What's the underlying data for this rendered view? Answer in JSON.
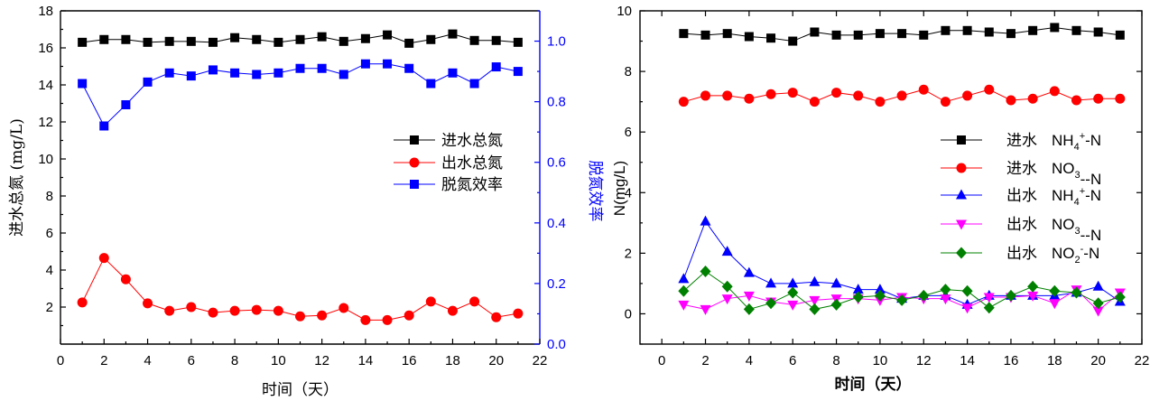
{
  "chart_data": [
    {
      "type": "line",
      "title": "",
      "xlabel": "时间（天）",
      "ylabel": "进水总氮 (mg/L)",
      "y2label": "脱氮效率",
      "xlim": [
        0,
        22
      ],
      "ylim": [
        0,
        18
      ],
      "y2lim": [
        0,
        1.1
      ],
      "x_ticks": [
        "0",
        "2",
        "4",
        "6",
        "8",
        "10",
        "12",
        "14",
        "16",
        "18",
        "20",
        "22"
      ],
      "y_ticks": [
        "2",
        "4",
        "6",
        "8",
        "10",
        "12",
        "14",
        "16",
        "18"
      ],
      "y2_ticks": [
        "0.0",
        "0.2",
        "0.4",
        "0.6",
        "0.8",
        "1.0"
      ],
      "legend_position": "center-right",
      "x": [
        1,
        2,
        3,
        4,
        5,
        6,
        7,
        8,
        9,
        10,
        11,
        12,
        13,
        14,
        15,
        16,
        17,
        18,
        19,
        20,
        21
      ],
      "series": [
        {
          "name": "进水总氮",
          "axis": "left",
          "color": "#000000",
          "marker": "square",
          "values": [
            16.3,
            16.45,
            16.45,
            16.3,
            16.35,
            16.35,
            16.3,
            16.55,
            16.45,
            16.3,
            16.45,
            16.6,
            16.35,
            16.5,
            16.7,
            16.25,
            16.45,
            16.75,
            16.4,
            16.4,
            16.3
          ]
        },
        {
          "name": "出水总氮",
          "axis": "left",
          "color": "#ff0000",
          "marker": "circle",
          "values": [
            2.25,
            4.65,
            3.5,
            2.2,
            1.8,
            2.0,
            1.7,
            1.8,
            1.85,
            1.8,
            1.5,
            1.55,
            1.95,
            1.3,
            1.3,
            1.55,
            2.3,
            1.8,
            2.3,
            1.45,
            1.65
          ]
        },
        {
          "name": "脱氮效率",
          "axis": "right",
          "color": "#0000ff",
          "marker": "square",
          "values": [
            0.86,
            0.72,
            0.79,
            0.865,
            0.895,
            0.885,
            0.905,
            0.895,
            0.89,
            0.895,
            0.91,
            0.91,
            0.89,
            0.925,
            0.925,
            0.91,
            0.86,
            0.895,
            0.86,
            0.915,
            0.9
          ]
        }
      ]
    },
    {
      "type": "line",
      "title": "",
      "xlabel": "时间（天）",
      "ylabel": "N(mg/L)",
      "xlim": [
        -1,
        22
      ],
      "ylim": [
        -1,
        10
      ],
      "x_ticks": [
        "0",
        "2",
        "4",
        "6",
        "8",
        "10",
        "12",
        "14",
        "16",
        "18",
        "20",
        "22"
      ],
      "y_ticks": [
        "0",
        "2",
        "4",
        "6",
        "8",
        "10"
      ],
      "legend_position": "center-right",
      "x": [
        1,
        2,
        3,
        4,
        5,
        6,
        7,
        8,
        9,
        10,
        11,
        12,
        13,
        14,
        15,
        16,
        17,
        18,
        19,
        20,
        21
      ],
      "series": [
        {
          "name": "进水 NH4+-N",
          "color": "#000000",
          "marker": "square",
          "values": [
            9.25,
            9.2,
            9.25,
            9.15,
            9.1,
            9.0,
            9.3,
            9.2,
            9.2,
            9.25,
            9.25,
            9.2,
            9.35,
            9.35,
            9.3,
            9.25,
            9.35,
            9.45,
            9.35,
            9.3,
            9.2
          ]
        },
        {
          "name": "进水 NO3--N",
          "color": "#ff0000",
          "marker": "circle",
          "values": [
            7.0,
            7.2,
            7.2,
            7.1,
            7.25,
            7.3,
            7.0,
            7.3,
            7.2,
            7.0,
            7.2,
            7.4,
            7.0,
            7.2,
            7.4,
            7.05,
            7.1,
            7.35,
            7.05,
            7.1,
            7.1
          ]
        },
        {
          "name": "出水 NH4+-N",
          "color": "#0000ff",
          "marker": "triangle-up",
          "values": [
            1.15,
            3.05,
            2.05,
            1.35,
            1.0,
            1.0,
            1.05,
            1.0,
            0.8,
            0.8,
            0.5,
            0.6,
            0.6,
            0.3,
            0.6,
            0.6,
            0.6,
            0.6,
            0.7,
            0.9,
            0.4
          ]
        },
        {
          "name": "出水 NO3--N",
          "color": "#ff00ff",
          "marker": "triangle-down",
          "values": [
            0.3,
            0.15,
            0.5,
            0.6,
            0.4,
            0.3,
            0.45,
            0.5,
            0.5,
            0.45,
            0.55,
            0.5,
            0.5,
            0.2,
            0.55,
            0.55,
            0.6,
            0.35,
            0.8,
            0.1,
            0.7
          ]
        },
        {
          "name": "出水 NO2--N",
          "color": "#008000",
          "marker": "diamond",
          "values": [
            0.75,
            1.4,
            0.9,
            0.15,
            0.35,
            0.7,
            0.15,
            0.3,
            0.55,
            0.6,
            0.45,
            0.6,
            0.8,
            0.75,
            0.2,
            0.6,
            0.9,
            0.75,
            0.7,
            0.35,
            0.55
          ]
        }
      ],
      "legend": [
        {
          "prefix": "进水",
          "base": "NH",
          "sub": "4",
          "sup": "+",
          "tail": "-N"
        },
        {
          "prefix": "进水",
          "base": "NO",
          "sub": "3",
          "sup": "",
          "tail": "--N"
        },
        {
          "prefix": "出水",
          "base": "NH",
          "sub": "4",
          "sup": "+",
          "tail": "-N"
        },
        {
          "prefix": "出水",
          "base": "NO",
          "sub": "3",
          "sup": "",
          "tail": "--N"
        },
        {
          "prefix": "出水",
          "base": "NO",
          "sub": "2",
          "sup": "-",
          "tail": "-N"
        }
      ]
    }
  ]
}
